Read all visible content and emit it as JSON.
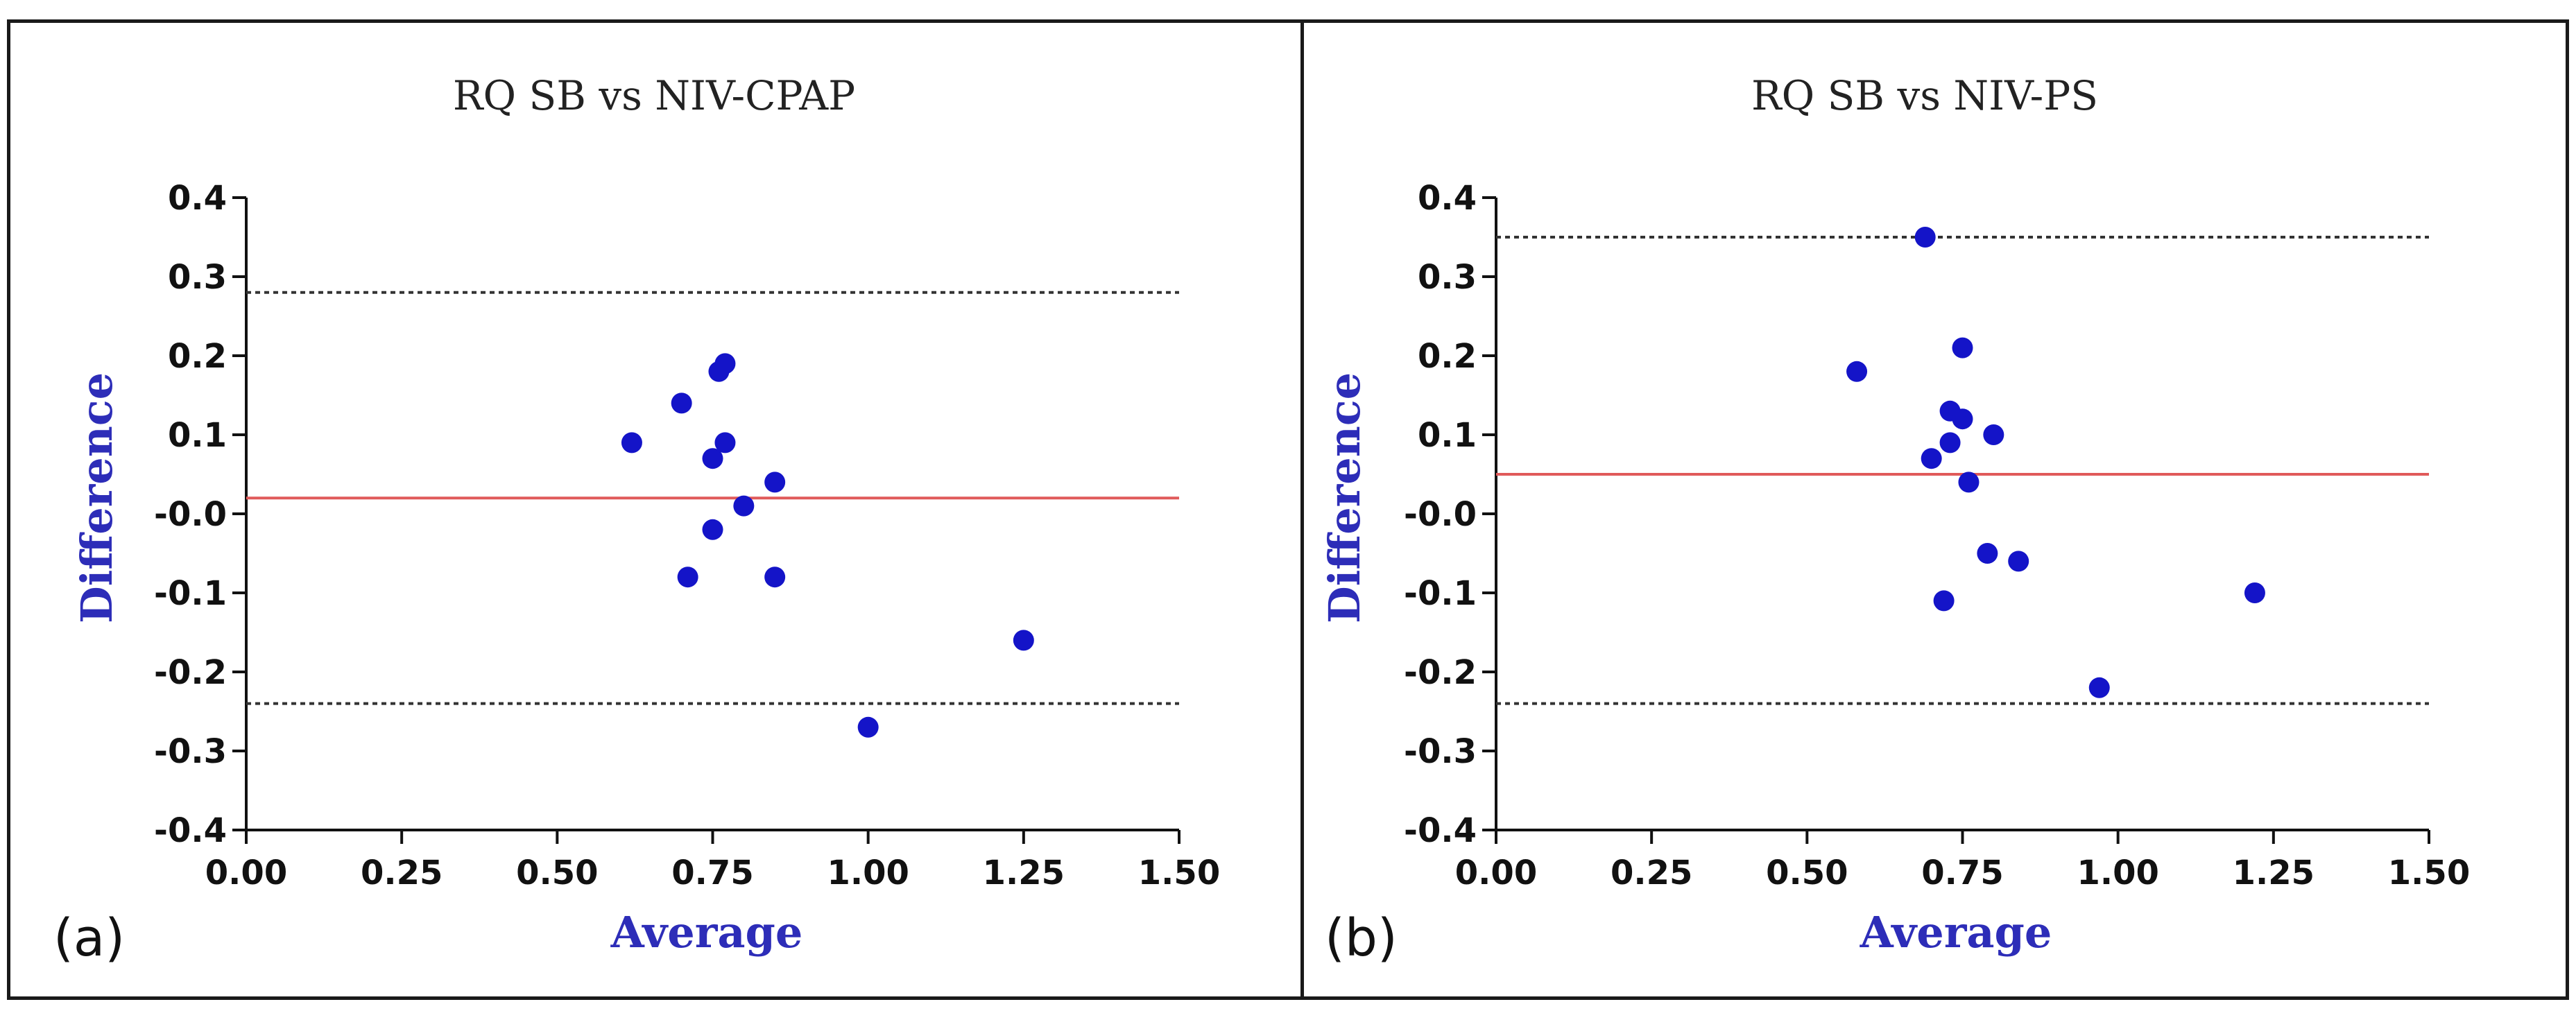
{
  "colors": {
    "points": "#1414c8",
    "mean_line": "#e05a5a",
    "limit_lines": "#333333",
    "axis_label": "#2d2db8"
  },
  "chart_data": [
    {
      "type": "scatter",
      "panel_label": "(a)",
      "title": "RQ SB vs NIV-CPAP",
      "xlabel": "Average",
      "ylabel": "Difference",
      "xlim": [
        0,
        1.5
      ],
      "ylim": [
        -0.4,
        0.4
      ],
      "x_ticks": [
        "0.00",
        "0.25",
        "0.50",
        "0.75",
        "1.00",
        "1.25",
        "1.50"
      ],
      "y_ticks": [
        "0.4",
        "0.3",
        "0.2",
        "0.1",
        "-0.0",
        "-0.1",
        "-0.2",
        "-0.3",
        "-0.4"
      ],
      "mean_difference": 0.02,
      "upper_limit": 0.28,
      "lower_limit": -0.24,
      "points": [
        {
          "x": 0.62,
          "y": 0.09
        },
        {
          "x": 0.7,
          "y": 0.14
        },
        {
          "x": 0.75,
          "y": 0.07
        },
        {
          "x": 0.76,
          "y": 0.18
        },
        {
          "x": 0.77,
          "y": 0.19
        },
        {
          "x": 0.77,
          "y": 0.09
        },
        {
          "x": 0.75,
          "y": -0.02
        },
        {
          "x": 0.71,
          "y": -0.08
        },
        {
          "x": 0.8,
          "y": 0.01
        },
        {
          "x": 0.85,
          "y": 0.04
        },
        {
          "x": 0.85,
          "y": -0.08
        },
        {
          "x": 1.0,
          "y": -0.27
        },
        {
          "x": 1.25,
          "y": -0.16
        }
      ]
    },
    {
      "type": "scatter",
      "panel_label": "(b)",
      "title": "RQ SB vs NIV-PS",
      "xlabel": "Average",
      "ylabel": "Difference",
      "xlim": [
        0,
        1.5
      ],
      "ylim": [
        -0.4,
        0.4
      ],
      "x_ticks": [
        "0.00",
        "0.25",
        "0.50",
        "0.75",
        "1.00",
        "1.25",
        "1.50"
      ],
      "y_ticks": [
        "0.4",
        "0.3",
        "0.2",
        "0.1",
        "-0.0",
        "-0.1",
        "-0.2",
        "-0.3",
        "-0.4"
      ],
      "mean_difference": 0.05,
      "upper_limit": 0.35,
      "lower_limit": -0.24,
      "points": [
        {
          "x": 0.69,
          "y": 0.35
        },
        {
          "x": 0.58,
          "y": 0.18
        },
        {
          "x": 0.75,
          "y": 0.21
        },
        {
          "x": 0.73,
          "y": 0.13
        },
        {
          "x": 0.75,
          "y": 0.12
        },
        {
          "x": 0.73,
          "y": 0.09
        },
        {
          "x": 0.7,
          "y": 0.07
        },
        {
          "x": 0.8,
          "y": 0.1
        },
        {
          "x": 0.76,
          "y": 0.04
        },
        {
          "x": 0.79,
          "y": -0.05
        },
        {
          "x": 0.84,
          "y": -0.06
        },
        {
          "x": 0.72,
          "y": -0.11
        },
        {
          "x": 0.97,
          "y": -0.22
        },
        {
          "x": 1.22,
          "y": -0.1
        }
      ]
    }
  ]
}
